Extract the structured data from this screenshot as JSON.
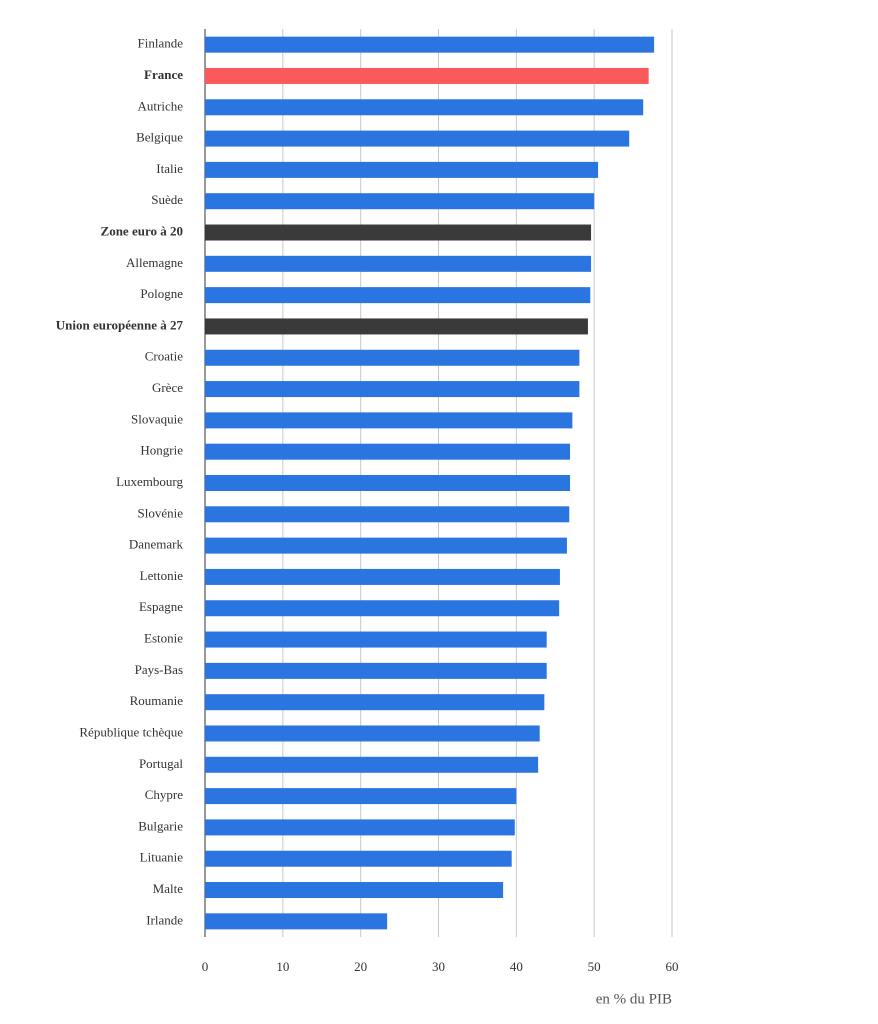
{
  "chart_data": {
    "type": "bar",
    "orientation": "horizontal",
    "categories": [
      "Finlande",
      "France",
      "Autriche",
      "Belgique",
      "Italie",
      "Suède",
      "Zone euro à 20",
      "Allemagne",
      "Pologne",
      "Union européenne à 27",
      "Croatie",
      "Grèce",
      "Slovaquie",
      "Hongrie",
      "Luxembourg",
      "Slovénie",
      "Danemark",
      "Lettonie",
      "Espagne",
      "Estonie",
      "Pays-Bas",
      "Roumanie",
      "République tchèque",
      "Portugal",
      "Chypre",
      "Bulgarie",
      "Lituanie",
      "Malte",
      "Irlande"
    ],
    "values": [
      57.7,
      57.0,
      56.3,
      54.5,
      50.5,
      50.0,
      49.6,
      49.6,
      49.5,
      49.2,
      48.1,
      48.1,
      47.2,
      46.9,
      46.9,
      46.8,
      46.5,
      45.6,
      45.5,
      43.9,
      43.9,
      43.6,
      43.0,
      42.8,
      40.0,
      39.8,
      39.4,
      38.3,
      23.4
    ],
    "color": "#2a75e0",
    "colors": [
      "#2a75e0",
      "#fb5a5c",
      "#2a75e0",
      "#2a75e0",
      "#2a75e0",
      "#2a75e0",
      "#3a3a3a",
      "#2a75e0",
      "#2a75e0",
      "#3a3a3a",
      "#2a75e0",
      "#2a75e0",
      "#2a75e0",
      "#2a75e0",
      "#2a75e0",
      "#2a75e0",
      "#2a75e0",
      "#2a75e0",
      "#2a75e0",
      "#2a75e0",
      "#2a75e0",
      "#2a75e0",
      "#2a75e0",
      "#2a75e0",
      "#2a75e0",
      "#2a75e0",
      "#2a75e0",
      "#2a75e0",
      "#2a75e0"
    ],
    "xlim": [
      0,
      60
    ],
    "xticks": [
      0,
      10,
      20,
      30,
      40,
      50,
      60
    ],
    "x_label": "en % du PIB",
    "grid": true
  }
}
